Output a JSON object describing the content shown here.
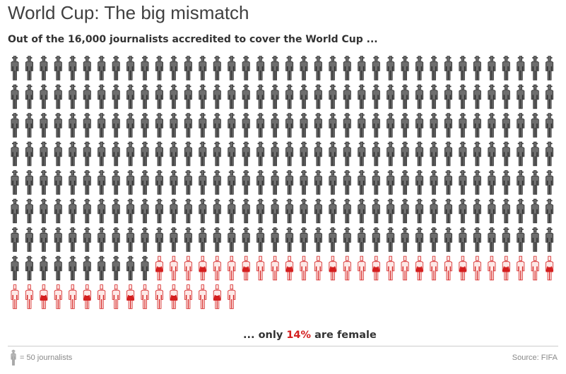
{
  "title": "World Cup: The big mismatch",
  "subtitle": "Out of the 16,000 journalists accredited to cover the World Cup ...",
  "key_label": "= 50 journalists",
  "source": "Source: FIFA",
  "colors": {
    "male_fill": "#6e6e6e",
    "male_stroke": "#2b2b2b",
    "female_fill": "#fde9e7",
    "female_stroke": "#d41f1f",
    "female_accent": "#d41f1f",
    "key_fill": "#b5b5b5"
  },
  "chart_data": {
    "type": "pictograph",
    "unit": "= 50 journalists",
    "total": 16000,
    "columns": 38,
    "series": [
      {
        "name": "male",
        "icons": 276
      },
      {
        "name": "female",
        "icons": 44
      }
    ],
    "annotation": {
      "prefix": "... only",
      "value": "14%",
      "suffix": "are female"
    }
  }
}
